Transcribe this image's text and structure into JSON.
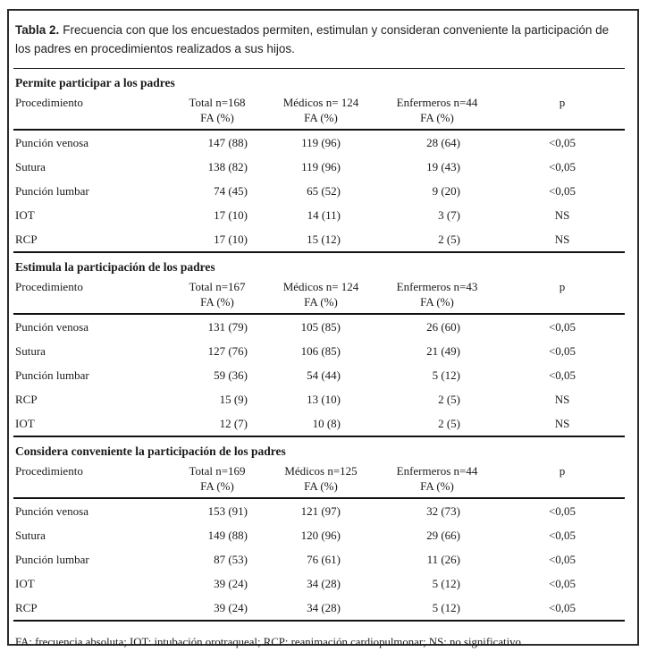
{
  "table": {
    "title_label": "Tabla 2.",
    "title_text": "Frecuencia con que los encuestados permiten, estimulan y consideran conveniente la participación de los padres en procedimientos realizados a sus hijos.",
    "footnote": "FA: frecuencia absoluta; IOT: intubación orotraqueal; RCP: reanimación cardiopulmonar; NS: no significativo",
    "sections": [
      {
        "title": "Permite participar a los padres",
        "col_headers": {
          "procedure": "Procedimiento",
          "total": "Total n=168\nFA (%)",
          "medicos": "Médicos n= 124\nFA (%)",
          "enfermeros": "Enfermeros n=44\nFA (%)",
          "p": "p"
        },
        "rows": [
          {
            "procedure": "Punción venosa",
            "total": "147 (88)",
            "medicos": "119 (96)",
            "enfermeros": "28 (64)",
            "p": "<0,05"
          },
          {
            "procedure": "Sutura",
            "total": "138 (82)",
            "medicos": "119 (96)",
            "enfermeros": "19 (43)",
            "p": "<0,05"
          },
          {
            "procedure": "Punción lumbar",
            "total": "74 (45)",
            "medicos": "65 (52)",
            "enfermeros": "9 (20)",
            "p": "<0,05"
          },
          {
            "procedure": "IOT",
            "total": "17 (10)",
            "medicos": "14 (11)",
            "enfermeros": "3 (7)",
            "p": "NS"
          },
          {
            "procedure": "RCP",
            "total": "17 (10)",
            "medicos": "15 (12)",
            "enfermeros": "2 (5)",
            "p": "NS"
          }
        ]
      },
      {
        "title": "Estimula la participación de los padres",
        "col_headers": {
          "procedure": "Procedimiento",
          "total": "Total n=167\nFA (%)",
          "medicos": "Médicos n= 124\nFA (%)",
          "enfermeros": "Enfermeros n=43\nFA (%)",
          "p": "p"
        },
        "rows": [
          {
            "procedure": "Punción venosa",
            "total": "131 (79)",
            "medicos": "105 (85)",
            "enfermeros": "26 (60)",
            "p": "<0,05"
          },
          {
            "procedure": "Sutura",
            "total": "127 (76)",
            "medicos": "106 (85)",
            "enfermeros": "21 (49)",
            "p": "<0,05"
          },
          {
            "procedure": "Punción lumbar",
            "total": "59 (36)",
            "medicos": "54 (44)",
            "enfermeros": "5 (12)",
            "p": "<0,05"
          },
          {
            "procedure": "RCP",
            "total": "15 (9)",
            "medicos": "13 (10)",
            "enfermeros": "2 (5)",
            "p": "NS"
          },
          {
            "procedure": "IOT",
            "total": "12 (7)",
            "medicos": "10 (8)",
            "enfermeros": "2 (5)",
            "p": "NS"
          }
        ]
      },
      {
        "title": "Considera conveniente la participación de los padres",
        "col_headers": {
          "procedure": "Procedimiento",
          "total": "Total n=169\nFA (%)",
          "medicos": "Médicos n=125\nFA (%)",
          "enfermeros": "Enfermeros n=44\nFA (%)",
          "p": "p"
        },
        "rows": [
          {
            "procedure": "Punción venosa",
            "total": "153 (91)",
            "medicos": "121 (97)",
            "enfermeros": "32 (73)",
            "p": "<0,05"
          },
          {
            "procedure": "Sutura",
            "total": "149 (88)",
            "medicos": "120 (96)",
            "enfermeros": "29 (66)",
            "p": "<0,05"
          },
          {
            "procedure": "Punción lumbar",
            "total": "87 (53)",
            "medicos": "76 (61)",
            "enfermeros": "11 (26)",
            "p": "<0,05"
          },
          {
            "procedure": "IOT",
            "total": "39 (24)",
            "medicos": "34 (28)",
            "enfermeros": "5 (12)",
            "p": "<0,05"
          },
          {
            "procedure": "RCP",
            "total": "39 (24)",
            "medicos": "34 (28)",
            "enfermeros": "5 (12)",
            "p": "<0,05"
          }
        ]
      }
    ]
  }
}
